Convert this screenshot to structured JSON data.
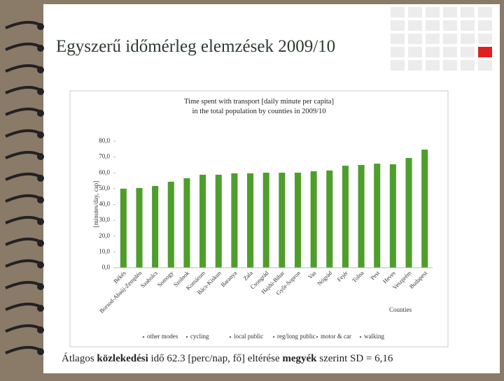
{
  "slide_title": "Egyszerű időmérleg elemzések 2009/10",
  "footer": [
    "Átlagos ",
    "közlekedési",
    " idő 62.3 [perc/nap, fő] eltérése ",
    "megyék",
    " szerint SD = 6,16"
  ],
  "chart_data": {
    "type": "bar",
    "title": [
      "Time spent with transport [daily minute per capita]",
      "in the total population by counties in 2009/10"
    ],
    "y_label": "[minutes/day, cap]",
    "x_label": "Counties",
    "legend": [
      "other modes",
      "cycling",
      "local public",
      "reg/long public",
      "motor & car",
      "walking"
    ],
    "categories": [
      "Békés",
      "Borsod-Abaúj-Zemplén",
      "Szabolcs",
      "Somogy",
      "Szolnok",
      "Komárom",
      "Bács-Kiskun",
      "Baranya",
      "Zala",
      "Csongrád",
      "Hajdú-Bihar",
      "Győr-Sopron",
      "Vas",
      "Nógrád",
      "Fejér",
      "Tolna",
      "Pest",
      "Heves",
      "Veszprém",
      "Budapest"
    ],
    "values": [
      50.0,
      50.4,
      51.7,
      54.4,
      56.6,
      58.8,
      58.8,
      59.7,
      59.7,
      60.1,
      60.1,
      60.1,
      61.0,
      61.5,
      64.5,
      65.0,
      65.8,
      65.4,
      69.4,
      74.7
    ],
    "color": "#4f9e2c",
    "ylim": [
      0,
      80
    ],
    "yticks": [
      {
        "value": 0,
        "label": "0,0"
      },
      {
        "value": 10,
        "label": "10,0"
      },
      {
        "value": 20,
        "label": "20,0"
      },
      {
        "value": 30,
        "label": "30,0"
      },
      {
        "value": 40,
        "label": "40,0"
      },
      {
        "value": 50,
        "label": "50,0"
      },
      {
        "value": 60,
        "label": "60,0"
      },
      {
        "value": 70,
        "label": "70,0"
      },
      {
        "value": 80,
        "label": "80,0"
      }
    ]
  }
}
